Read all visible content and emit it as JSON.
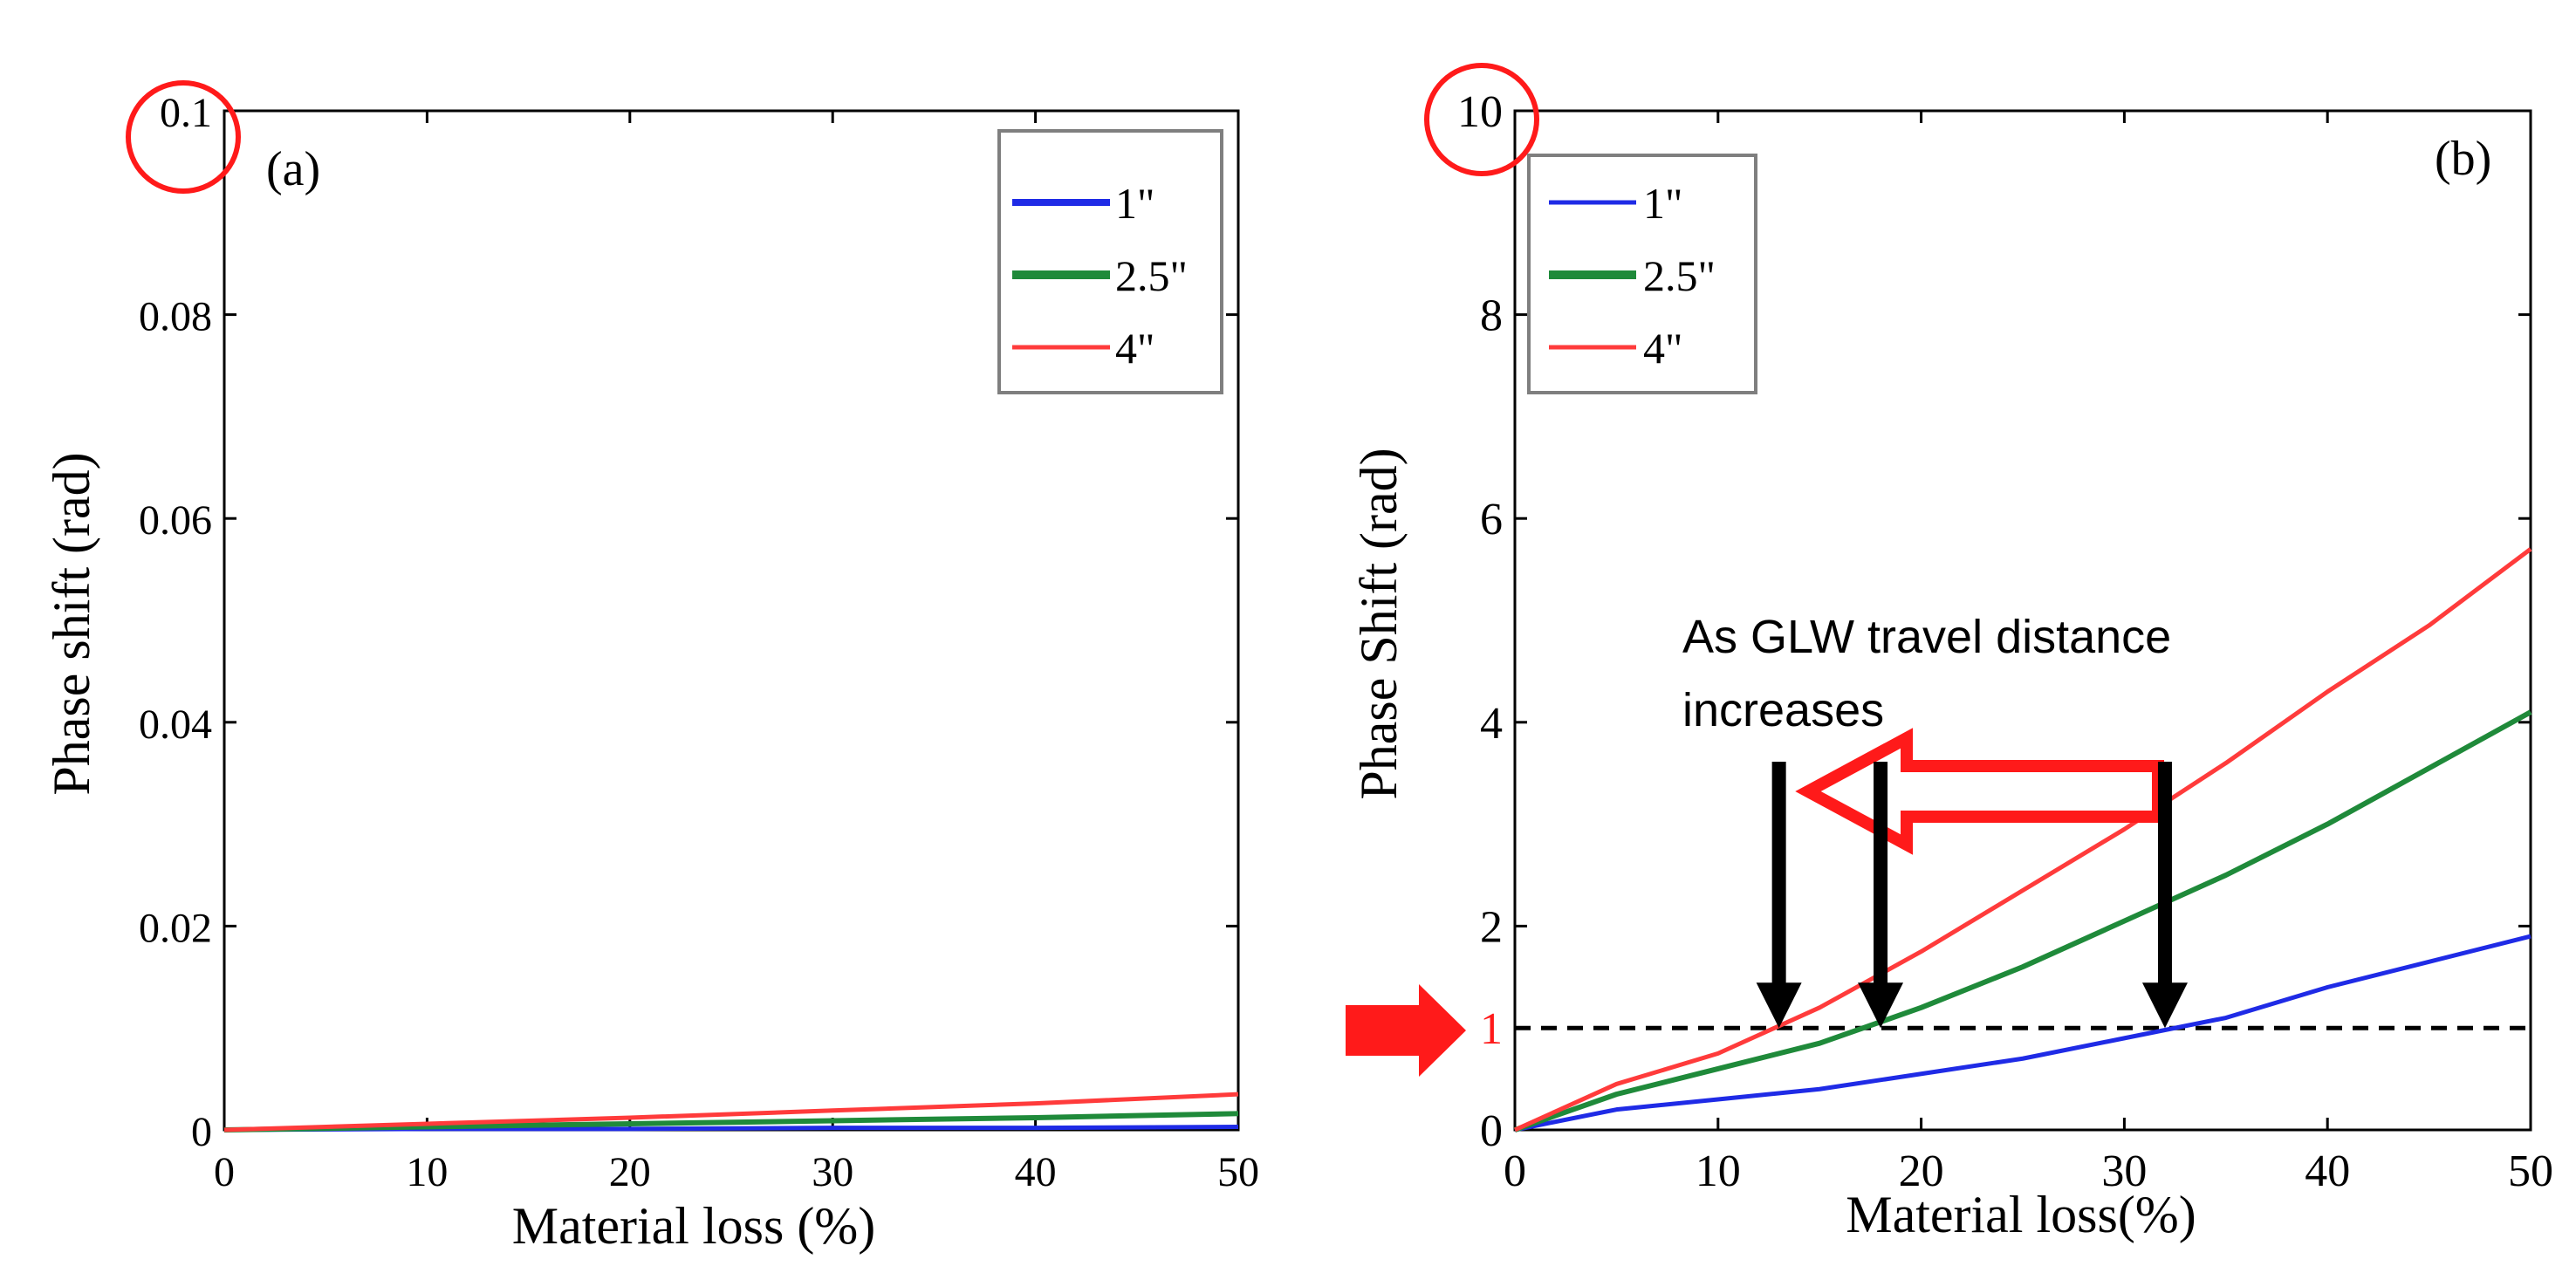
{
  "colors": {
    "blue": "#1f2be6",
    "green": "#1f8a3a",
    "red": "#ff3b3b",
    "highlight": "#ff1a1a",
    "axis": "#000000",
    "legend_border": "#7f7f7f"
  },
  "chart_data": [
    {
      "type": "line",
      "panel_label": "(a)",
      "xlabel": "Material loss (%)",
      "ylabel": "Phase shift (rad)",
      "xlim": [
        0,
        50
      ],
      "ylim": [
        0,
        0.1
      ],
      "xticks": [
        0,
        10,
        20,
        30,
        40,
        50
      ],
      "xtick_labels": [
        "0",
        "10",
        "20",
        "30",
        "40",
        "50"
      ],
      "yticks": [
        0,
        0.02,
        0.04,
        0.06,
        0.08,
        0.1
      ],
      "ytick_labels": [
        "0",
        "0.02",
        "0.04",
        "0.06",
        "0.08",
        "0.1"
      ],
      "highlighted_tick": "0.1",
      "legend": [
        "1\"",
        "2.5\"",
        "4\""
      ],
      "legend_position": "top-right",
      "series": [
        {
          "name": "1\"",
          "color_key": "blue",
          "x": [
            0,
            10,
            20,
            30,
            40,
            50
          ],
          "y": [
            0,
            0.0001,
            0.0001,
            0.0002,
            0.0002,
            0.0003
          ]
        },
        {
          "name": "2.5\"",
          "color_key": "green",
          "x": [
            0,
            10,
            20,
            30,
            40,
            50
          ],
          "y": [
            0,
            0.0003,
            0.0006,
            0.0009,
            0.0012,
            0.0016
          ]
        },
        {
          "name": "4\"",
          "color_key": "red",
          "x": [
            0,
            10,
            20,
            30,
            40,
            50
          ],
          "y": [
            0,
            0.0006,
            0.0012,
            0.0019,
            0.0026,
            0.0035
          ]
        }
      ]
    },
    {
      "type": "line",
      "panel_label": "(b)",
      "xlabel": "Material loss(%)",
      "ylabel": "Phase Shift (rad)",
      "xlim": [
        0,
        50
      ],
      "ylim": [
        0,
        10
      ],
      "xticks": [
        0,
        10,
        20,
        30,
        40,
        50
      ],
      "xtick_labels": [
        "0",
        "10",
        "20",
        "30",
        "40",
        "50"
      ],
      "yticks": [
        0,
        2,
        4,
        6,
        8,
        10
      ],
      "ytick_labels": [
        "0",
        "2",
        "4",
        "6",
        "8",
        "10"
      ],
      "highlighted_tick": "10",
      "extra_tick": {
        "value": 1,
        "label": "1"
      },
      "legend": [
        "1\"",
        "2.5\"",
        "4\""
      ],
      "legend_position": "top-left",
      "series": [
        {
          "name": "1\"",
          "color_key": "blue",
          "x": [
            0,
            5,
            10,
            15,
            20,
            25,
            30,
            35,
            40,
            45,
            50
          ],
          "y": [
            0,
            0.2,
            0.3,
            0.4,
            0.55,
            0.7,
            0.9,
            1.1,
            1.4,
            1.65,
            1.9
          ]
        },
        {
          "name": "2.5\"",
          "color_key": "green",
          "x": [
            0,
            5,
            10,
            15,
            20,
            25,
            30,
            35,
            40,
            45,
            50
          ],
          "y": [
            0,
            0.35,
            0.6,
            0.85,
            1.2,
            1.6,
            2.05,
            2.5,
            3.0,
            3.55,
            4.1
          ]
        },
        {
          "name": "4\"",
          "color_key": "red",
          "x": [
            0,
            5,
            10,
            15,
            20,
            25,
            30,
            35,
            40,
            45,
            50
          ],
          "y": [
            0,
            0.45,
            0.75,
            1.2,
            1.75,
            2.35,
            2.95,
            3.6,
            4.3,
            4.95,
            5.7
          ]
        }
      ],
      "reference_line": {
        "y": 1,
        "style": "dashed"
      },
      "annotation": {
        "line1": "As GLW travel distance",
        "line2": "increases"
      },
      "crossing_markers_x": [
        13,
        18,
        32
      ]
    }
  ]
}
